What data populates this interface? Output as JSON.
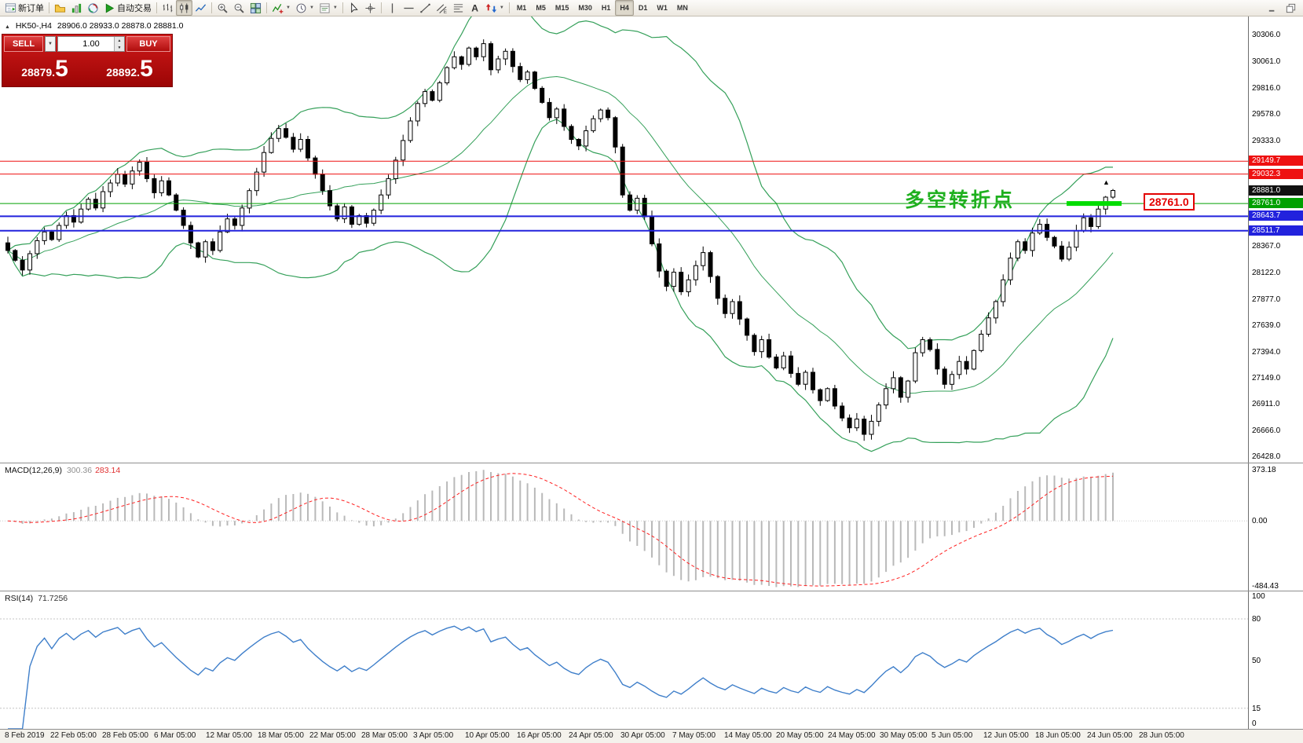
{
  "toolbar": {
    "items": [
      {
        "type": "button",
        "name": "new-order-button",
        "icon": "new-order",
        "label": "新订单"
      },
      {
        "type": "sep"
      },
      {
        "type": "button",
        "name": "profiles-button",
        "icon": "profiles"
      },
      {
        "type": "button",
        "name": "market-watch-button",
        "icon": "market-watch"
      },
      {
        "type": "button",
        "name": "navigator-button",
        "icon": "navigator"
      },
      {
        "type": "button",
        "name": "auto-trading-button",
        "icon": "auto-trading",
        "label": "自动交易"
      },
      {
        "type": "sep"
      },
      {
        "type": "button",
        "name": "bar-chart-button",
        "icon": "bar-chart"
      },
      {
        "type": "button",
        "name": "candlestick-chart-button",
        "icon": "candle-chart",
        "active": true
      },
      {
        "type": "button",
        "name": "line-chart-button",
        "icon": "line-chart"
      },
      {
        "type": "sep"
      },
      {
        "type": "button",
        "name": "zoom-in-button",
        "icon": "zoom-in"
      },
      {
        "type": "button",
        "name": "zoom-out-button",
        "icon": "zoom-out"
      },
      {
        "type": "button",
        "name": "tile-windows-button",
        "icon": "tile-windows"
      },
      {
        "type": "sep"
      },
      {
        "type": "button",
        "name": "indicators-button",
        "icon": "indicators",
        "dropdown": true
      },
      {
        "type": "button",
        "name": "periods-button",
        "icon": "periods",
        "dropdown": true
      },
      {
        "type": "button",
        "name": "templates-button",
        "icon": "templates",
        "dropdown": true
      },
      {
        "type": "sep"
      },
      {
        "type": "button",
        "name": "cursor-button",
        "icon": "cursor"
      },
      {
        "type": "button",
        "name": "crosshair-button",
        "icon": "crosshair"
      },
      {
        "type": "sep"
      },
      {
        "type": "button",
        "name": "vertical-line-button",
        "icon": "vline"
      },
      {
        "type": "button",
        "name": "horizontal-line-button",
        "icon": "hline"
      },
      {
        "type": "button",
        "name": "trendline-button",
        "icon": "trendline"
      },
      {
        "type": "button",
        "name": "equidistant-channel-button",
        "icon": "channel"
      },
      {
        "type": "button",
        "name": "fibonacci-button",
        "icon": "fibonacci"
      },
      {
        "type": "button",
        "name": "text-label-button",
        "icon": "text"
      },
      {
        "type": "button",
        "name": "arrows-button",
        "icon": "arrows",
        "dropdown": true
      },
      {
        "type": "sep"
      },
      {
        "type": "tf",
        "name": "timeframe-m1",
        "text": "M1"
      },
      {
        "type": "tf",
        "name": "timeframe-m5",
        "text": "M5"
      },
      {
        "type": "tf",
        "name": "timeframe-m15",
        "text": "M15"
      },
      {
        "type": "tf",
        "name": "timeframe-m30",
        "text": "M30"
      },
      {
        "type": "tf",
        "name": "timeframe-h1",
        "text": "H1"
      },
      {
        "type": "tf",
        "name": "timeframe-h4",
        "text": "H4",
        "active": true
      },
      {
        "type": "tf",
        "name": "timeframe-d1",
        "text": "D1"
      },
      {
        "type": "tf",
        "name": "timeframe-w1",
        "text": "W1"
      },
      {
        "type": "tf",
        "name": "timeframe-mn",
        "text": "MN"
      }
    ],
    "right_buttons": [
      {
        "name": "minimize-chart-button",
        "icon": "minimize"
      },
      {
        "name": "restore-chart-button",
        "icon": "restore"
      }
    ]
  },
  "symbol_info": {
    "collapse": "▲",
    "symbol_period": "HK50-,H4",
    "ohlc": "28906.0 28933.0 28878.0 28881.0"
  },
  "trade_panel": {
    "sell_label": "SELL",
    "buy_label": "BUY",
    "volume": "1.00",
    "sell_price": "28879.",
    "sell_pips": "5",
    "buy_price": "28892.",
    "buy_pips": "5",
    "panel_color": "#c11414"
  },
  "main_chart": {
    "price_axis": {
      "min": 26380,
      "max": 30480,
      "labels": [
        30306.0,
        30061.0,
        29816.0,
        29578.0,
        29333.0,
        28367.0,
        28122.0,
        27877.0,
        27639.0,
        27394.0,
        27149.0,
        26911.0,
        26666.0,
        26428.0
      ]
    },
    "bollinger": {
      "period": 20,
      "deviation": 2,
      "color": "#35a05a"
    },
    "candle_up_color": "#ffffff",
    "candle_down_color": "#000000",
    "hlines": [
      {
        "price": 29149.7,
        "label": "29149.7",
        "color": "#ee1111",
        "width": 1
      },
      {
        "price": 29032.3,
        "label": "29032.3",
        "color": "#ee1111",
        "width": 1
      },
      {
        "price": 28761.0,
        "label": "28761.0",
        "color": "#00a000",
        "width": 1
      },
      {
        "price": 28643.7,
        "label": "28643.7",
        "color": "#2222dd",
        "width": 2
      },
      {
        "price": 28511.7,
        "label": "28511.7",
        "color": "#2222dd",
        "width": 2
      }
    ],
    "bid_marker": {
      "price": 28881.0,
      "label": "28881.0",
      "color": "#111111"
    },
    "annotation": {
      "text": "多空转折点",
      "color": "#1eb01e"
    },
    "highlight_segment": {
      "price": 28761.0,
      "label": "28761.0",
      "color": "#00dd00"
    },
    "marker": {
      "glyph": "▲"
    },
    "candles": {
      "first_open": 28400,
      "closes": [
        28330,
        28240,
        28150,
        28300,
        28420,
        28500,
        28430,
        28560,
        28650,
        28590,
        28710,
        28800,
        28720,
        28870,
        28950,
        29030,
        28940,
        29060,
        29140,
        28990,
        28860,
        28970,
        28840,
        28700,
        28560,
        28400,
        28270,
        28410,
        28330,
        28500,
        28620,
        28560,
        28720,
        28880,
        29050,
        29230,
        29360,
        29450,
        29370,
        29260,
        29350,
        29180,
        29030,
        28880,
        28740,
        28620,
        28730,
        28570,
        28650,
        28580,
        28700,
        28840,
        28990,
        29160,
        29340,
        29520,
        29680,
        29790,
        29710,
        29870,
        30010,
        30110,
        30040,
        30190,
        30110,
        30230,
        29990,
        30090,
        30160,
        30020,
        29900,
        29970,
        29820,
        29690,
        29550,
        29630,
        29470,
        29350,
        29290,
        29430,
        29540,
        29620,
        29550,
        29280,
        28840,
        28700,
        28810,
        28640,
        28390,
        28140,
        28000,
        28130,
        27950,
        28060,
        28190,
        28310,
        28090,
        27890,
        27750,
        27860,
        27700,
        27550,
        27400,
        27510,
        27350,
        27250,
        27360,
        27200,
        27100,
        27210,
        27050,
        26950,
        27060,
        26900,
        26790,
        26700,
        26780,
        26640,
        26760,
        26910,
        27060,
        27160,
        26980,
        27130,
        27390,
        27510,
        27420,
        27240,
        27100,
        27190,
        27310,
        27240,
        27410,
        27560,
        27710,
        27860,
        28060,
        28260,
        28410,
        28330,
        28490,
        28570,
        28450,
        28370,
        28250,
        28360,
        28510,
        28630,
        28550,
        28710,
        28820,
        28881
      ]
    }
  },
  "macd": {
    "name": "MACD(12,26,9)",
    "value_main": "300.36",
    "value_signal": "283.14",
    "histogram_color": "#b9b9b9",
    "signal_color": "#ff2020",
    "scale": [
      -510,
      420
    ],
    "axis": [
      {
        "v": 373.18,
        "label": "373.18"
      },
      {
        "v": 0,
        "label": "0.00"
      },
      {
        "v": -484.43,
        "label": "-484.43"
      }
    ]
  },
  "rsi": {
    "name": "RSI(14)",
    "value": "71.7256",
    "line_color": "#3f7fca",
    "levels": [
      80,
      15
    ],
    "axis": [
      100,
      80,
      50,
      15,
      0
    ]
  },
  "time_axis": {
    "labels": [
      "8 Feb 2019",
      "22 Feb 05:00",
      "28 Feb 05:00",
      "6 Mar 05:00",
      "12 Mar 05:00",
      "18 Mar 05:00",
      "22 Mar 05:00",
      "28 Mar 05:00",
      "3 Apr 05:00",
      "10 Apr 05:00",
      "16 Apr 05:00",
      "24 Apr 05:00",
      "30 Apr 05:00",
      "7 May 05:00",
      "14 May 05:00",
      "20 May 05:00",
      "24 May 05:00",
      "30 May 05:00",
      "5 Jun 05:00",
      "12 Jun 05:00",
      "18 Jun 05:00",
      "24 Jun 05:00",
      "28 Jun 05:00"
    ]
  }
}
